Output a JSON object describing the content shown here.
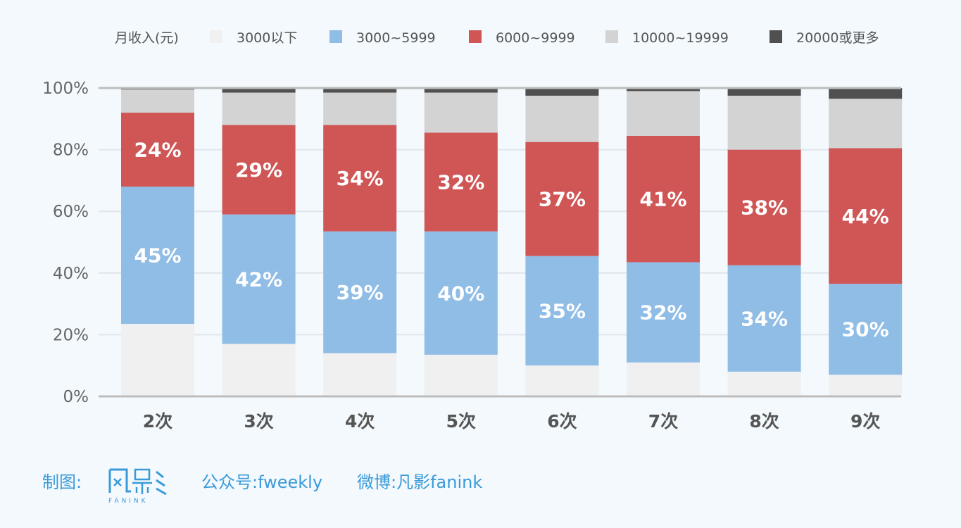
{
  "colors": {
    "background": "#f3f9fd",
    "grid": "#dfe6ec",
    "axis": "#bdbdbd",
    "series": [
      "#f0f0f0",
      "#8fbde6",
      "#d05656",
      "#d3d3d3",
      "#505050"
    ]
  },
  "chart_data": {
    "type": "bar",
    "stacked": true,
    "legend_title": "月收入(元)",
    "legend_position": "top",
    "categories": [
      "2次",
      "3次",
      "4次",
      "5次",
      "6次",
      "7次",
      "8次",
      "9次"
    ],
    "yticks": [
      "0%",
      "20%",
      "40%",
      "60%",
      "80%",
      "100%"
    ],
    "ylim": [
      0,
      100
    ],
    "grid": true,
    "series": [
      {
        "name": "3000以下",
        "values": [
          23.5,
          17,
          14,
          13.5,
          10,
          11,
          8,
          7
        ]
      },
      {
        "name": "3000~5999",
        "values": [
          44.5,
          42,
          39.5,
          40,
          35.5,
          32.5,
          34.5,
          29.5
        ]
      },
      {
        "name": "6000~9999",
        "values": [
          24,
          29,
          34.5,
          32,
          37,
          41,
          37.5,
          44
        ]
      },
      {
        "name": "10000~19999",
        "values": [
          7.5,
          10.5,
          10.5,
          13,
          15,
          14.5,
          17.5,
          16
        ]
      },
      {
        "name": "20000或更多",
        "values": [
          0.5,
          1.5,
          1.5,
          1.5,
          2.5,
          1,
          2.5,
          3.5
        ]
      }
    ],
    "data_labels": {
      "3000~5999": [
        "45%",
        "42%",
        "39%",
        "40%",
        "35%",
        "32%",
        "34%",
        "30%"
      ],
      "6000~9999": [
        "24%",
        "29%",
        "34%",
        "32%",
        "37%",
        "41%",
        "38%",
        "44%"
      ]
    }
  },
  "footer": {
    "credit_label": "制图:",
    "logo_icon": "fanink-logo",
    "logo_caption": "FANINK",
    "wechat": "公众号:fweekly",
    "weibo": "微博:凡影fanink"
  }
}
